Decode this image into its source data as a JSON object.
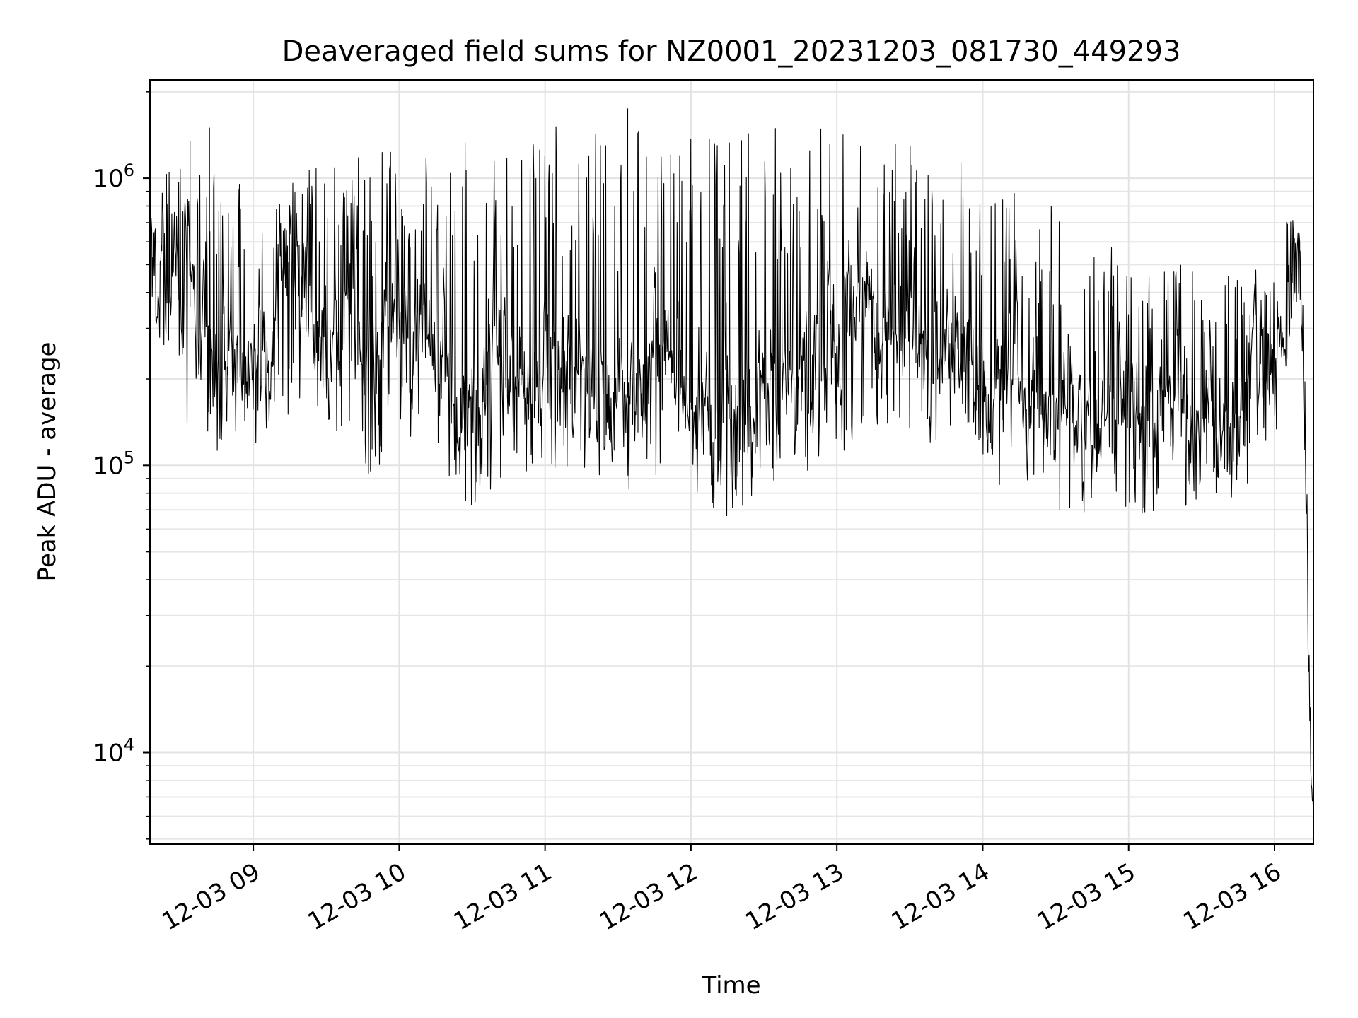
{
  "chart_data": {
    "type": "line",
    "title": "Deaveraged field sums for NZ0001_20231203_081730_449293",
    "xlabel": "Time",
    "ylabel": "Peak ADU - average",
    "xscale": "time",
    "yscale": "log",
    "xlim": [
      "2023-12-03 08:17:30",
      "2023-12-03 16:16:00"
    ],
    "ylim": [
      4800,
      2200000
    ],
    "x_ticks": [
      {
        "value": "2023-12-03 09:00",
        "label": "12-03 09"
      },
      {
        "value": "2023-12-03 10:00",
        "label": "12-03 10"
      },
      {
        "value": "2023-12-03 11:00",
        "label": "12-03 11"
      },
      {
        "value": "2023-12-03 12:00",
        "label": "12-03 12"
      },
      {
        "value": "2023-12-03 13:00",
        "label": "12-03 13"
      },
      {
        "value": "2023-12-03 14:00",
        "label": "12-03 14"
      },
      {
        "value": "2023-12-03 15:00",
        "label": "12-03 15"
      },
      {
        "value": "2023-12-03 16:00",
        "label": "12-03 16"
      }
    ],
    "y_ticks": [
      {
        "value": 10000,
        "base": "10",
        "exp": "4"
      },
      {
        "value": 100000,
        "base": "10",
        "exp": "5"
      },
      {
        "value": 1000000,
        "base": "10",
        "exp": "6"
      }
    ],
    "grid": true,
    "grid_minor_y": true,
    "line_color": "#000000",
    "series": [
      {
        "envelope": {
          "time": [
            "08:18",
            "08:30",
            "08:45",
            "09:00",
            "09:15",
            "09:30",
            "09:45",
            "10:00",
            "10:15",
            "10:30",
            "10:45",
            "11:00",
            "11:15",
            "11:30",
            "11:45",
            "12:00",
            "12:15",
            "12:30",
            "12:45",
            "13:00",
            "13:15",
            "13:30",
            "13:45",
            "14:00",
            "14:15",
            "14:30",
            "14:45",
            "15:00",
            "15:15",
            "15:30",
            "15:45",
            "16:00",
            "16:07",
            "16:10",
            "16:12",
            "16:13",
            "16:14",
            "16:15",
            "16:16"
          ],
          "typical": [
            480000,
            400000,
            260000,
            280000,
            420000,
            320000,
            230000,
            260000,
            250000,
            150000,
            220000,
            200000,
            250000,
            150000,
            250000,
            190000,
            150000,
            190000,
            200000,
            260000,
            320000,
            230000,
            280000,
            190000,
            170000,
            160000,
            170000,
            170000,
            150000,
            140000,
            130000,
            250000,
            420000,
            520000,
            300000,
            120000,
            30000,
            9000,
            6000
          ],
          "low": [
            380000,
            130000,
            100000,
            110000,
            150000,
            150000,
            80000,
            130000,
            100000,
            68000,
            90000,
            95000,
            100000,
            75000,
            90000,
            85000,
            60000,
            90000,
            75000,
            100000,
            140000,
            100000,
            115000,
            90000,
            80000,
            65000,
            70000,
            65000,
            70000,
            65000,
            65000,
            120000,
            300000,
            400000,
            150000,
            40000,
            20000,
            8000,
            6000
          ],
          "high": [
            900000,
            1300000,
            1100000,
            950000,
            1000000,
            1200000,
            1300000,
            1400000,
            1500000,
            1500000,
            1500000,
            1500000,
            1600000,
            1600000,
            1500000,
            1500000,
            1450000,
            1500000,
            1500000,
            1500000,
            1400000,
            1400000,
            1300000,
            1100000,
            900000,
            800000,
            700000,
            600000,
            550000,
            500000,
            450000,
            600000,
            800000,
            700000,
            400000,
            160000,
            27000,
            12000,
            6000
          ]
        },
        "notable_peaks": [
          {
            "time": "08:34",
            "value": 1350000
          },
          {
            "time": "08:42",
            "value": 1500000
          },
          {
            "time": "11:34",
            "value": 1750000
          },
          {
            "time": "16:16",
            "value": 6000
          }
        ]
      }
    ]
  }
}
